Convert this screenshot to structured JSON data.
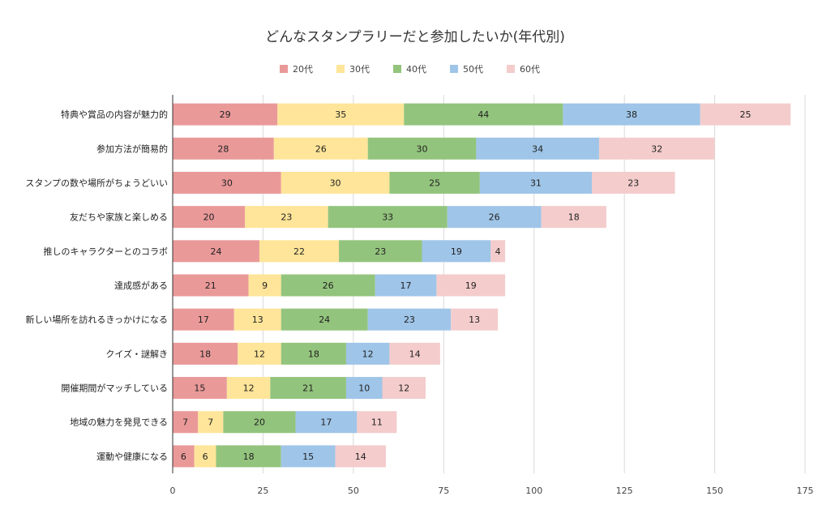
{
  "chart_data": {
    "type": "bar",
    "orientation": "horizontal",
    "stacked": true,
    "title": "どんなスタンプラリーだと参加したいか(年代別)",
    "categories": [
      "特典や賞品の内容が魅力的",
      "参加方法が簡易的",
      "スタンプの数や場所がちょうどいい",
      "友だちや家族と楽しめる",
      "推しのキャラクターとのコラボ",
      "達成感がある",
      "新しい場所を訪れるきっかけになる",
      "クイズ・謎解き",
      "開催期間がマッチしている",
      "地域の魅力を発見できる",
      "運動や健康になる"
    ],
    "series": [
      {
        "name": "20代",
        "color": "#ea9999",
        "values": [
          29,
          28,
          30,
          20,
          24,
          21,
          17,
          18,
          15,
          7,
          6
        ]
      },
      {
        "name": "30代",
        "color": "#ffe599",
        "values": [
          35,
          26,
          30,
          23,
          22,
          9,
          13,
          12,
          12,
          7,
          6
        ]
      },
      {
        "name": "40代",
        "color": "#93c47d",
        "values": [
          44,
          30,
          25,
          33,
          23,
          26,
          24,
          18,
          21,
          20,
          18
        ]
      },
      {
        "name": "50代",
        "color": "#9fc5e8",
        "values": [
          38,
          34,
          31,
          26,
          19,
          17,
          23,
          12,
          10,
          17,
          15
        ]
      },
      {
        "name": "60代",
        "color": "#f4cccc",
        "values": [
          25,
          32,
          23,
          18,
          4,
          19,
          13,
          14,
          12,
          11,
          14
        ]
      }
    ],
    "xlim": [
      0,
      175
    ],
    "xticks": [
      0,
      25,
      50,
      75,
      100,
      125,
      150,
      175
    ],
    "xlabel": "",
    "ylabel": "",
    "grid": true,
    "legend_position": "top-center"
  }
}
